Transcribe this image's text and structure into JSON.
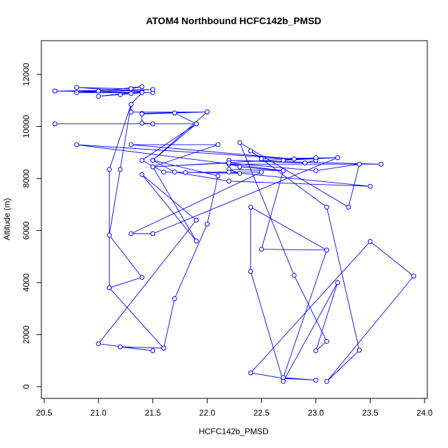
{
  "chart_data": {
    "type": "line",
    "title": "ATOM4 Northbound HCFC142b_PMSD",
    "xlabel": "HCFC142b_PMSD",
    "ylabel": "Altitude (m)",
    "xlim": [
      20.5,
      24.0
    ],
    "ylim": [
      0,
      12000
    ],
    "xticks": [
      20.5,
      21.0,
      21.5,
      22.0,
      22.5,
      23.0,
      23.5,
      24.0
    ],
    "xtick_labels": [
      "20.5",
      "21.0",
      "21.5",
      "22.0",
      "22.5",
      "23.0",
      "23.5",
      "24.0"
    ],
    "yticks": [
      0,
      2000,
      4000,
      6000,
      8000,
      10000,
      12000
    ],
    "ytick_labels": [
      "0",
      "2000",
      "4000",
      "6000",
      "8000",
      "10000",
      "12000"
    ],
    "grid": false,
    "line_color": "#0000ff",
    "marker": "open-circle",
    "series": [
      {
        "name": "",
        "points": [
          [
            20.6,
            11360
          ],
          [
            21.5,
            11300
          ],
          [
            20.8,
            11300
          ],
          [
            21.5,
            11420
          ],
          [
            20.6,
            11360
          ],
          [
            21.0,
            11360
          ],
          [
            21.4,
            11530
          ],
          [
            21.3,
            11450
          ],
          [
            20.8,
            11500
          ],
          [
            21.4,
            11340
          ],
          [
            21.0,
            11160
          ],
          [
            21.3,
            11260
          ],
          [
            21.2,
            11220
          ],
          [
            21.4,
            11300
          ],
          [
            21.3,
            10850
          ],
          [
            21.1,
            8350
          ],
          [
            21.1,
            3800
          ],
          [
            21.4,
            4200
          ],
          [
            21.1,
            5820
          ],
          [
            21.2,
            8350
          ],
          [
            21.3,
            10850
          ],
          [
            21.3,
            10550
          ],
          [
            22.0,
            10560
          ],
          [
            21.4,
            10500
          ],
          [
            21.7,
            10520
          ],
          [
            21.4,
            10480
          ],
          [
            21.4,
            10130
          ],
          [
            21.5,
            10100
          ],
          [
            20.6,
            10100
          ],
          [
            21.9,
            10100
          ],
          [
            21.4,
            8700
          ],
          [
            21.6,
            8250
          ],
          [
            22.3,
            8200
          ],
          [
            22.2,
            8350
          ],
          [
            22.7,
            8300
          ],
          [
            22.3,
            8450
          ],
          [
            22.2,
            8550
          ],
          [
            23.6,
            8550
          ],
          [
            22.2,
            8700
          ],
          [
            22.9,
            8600
          ],
          [
            23.0,
            8700
          ],
          [
            23.0,
            8800
          ],
          [
            22.7,
            8700
          ],
          [
            23.2,
            8800
          ],
          [
            22.5,
            8760
          ],
          [
            22.4,
            9060
          ],
          [
            23.1,
            6900
          ],
          [
            23.4,
            1400
          ],
          [
            23.1,
            200
          ],
          [
            23.9,
            4250
          ],
          [
            23.5,
            5580
          ],
          [
            22.4,
            530
          ],
          [
            22.7,
            320
          ],
          [
            23.0,
            250
          ],
          [
            22.7,
            350
          ],
          [
            23.1,
            5250
          ],
          [
            22.4,
            6900
          ],
          [
            22.4,
            4430
          ],
          [
            22.7,
            200
          ],
          [
            23.2,
            4000
          ],
          [
            23.0,
            1380
          ],
          [
            23.1,
            1740
          ],
          [
            22.8,
            4280
          ],
          [
            22.3,
            9380
          ],
          [
            23.3,
            6900
          ],
          [
            23.4,
            8550
          ],
          [
            23.0,
            8300
          ],
          [
            22.2,
            8600
          ],
          [
            21.5,
            8450
          ],
          [
            22.8,
            8750
          ],
          [
            21.3,
            9300
          ],
          [
            22.1,
            9300
          ],
          [
            21.5,
            8450
          ],
          [
            21.9,
            5600
          ],
          [
            21.4,
            8150
          ],
          [
            21.9,
            6400
          ],
          [
            21.0,
            1650
          ],
          [
            21.5,
            1380
          ],
          [
            21.2,
            1530
          ],
          [
            21.6,
            1480
          ],
          [
            21.1,
            3800
          ],
          [
            21.6,
            1480
          ],
          [
            21.7,
            3380
          ],
          [
            22.0,
            6250
          ],
          [
            22.1,
            8100
          ],
          [
            21.5,
            8700
          ],
          [
            22.0,
            10560
          ],
          [
            21.7,
            10520
          ],
          [
            21.9,
            10100
          ],
          [
            21.5,
            8700
          ],
          [
            21.7,
            8250
          ],
          [
            22.2,
            7900
          ],
          [
            23.5,
            7700
          ],
          [
            22.2,
            8250
          ],
          [
            21.8,
            8230
          ],
          [
            22.5,
            8250
          ],
          [
            21.3,
            5880
          ],
          [
            21.5,
            5880
          ],
          [
            23.2,
            8800
          ],
          [
            22.8,
            8750
          ],
          [
            20.8,
            9300
          ],
          [
            22.7,
            8300
          ],
          [
            22.5,
            5280
          ],
          [
            23.1,
            5250
          ]
        ]
      }
    ]
  }
}
